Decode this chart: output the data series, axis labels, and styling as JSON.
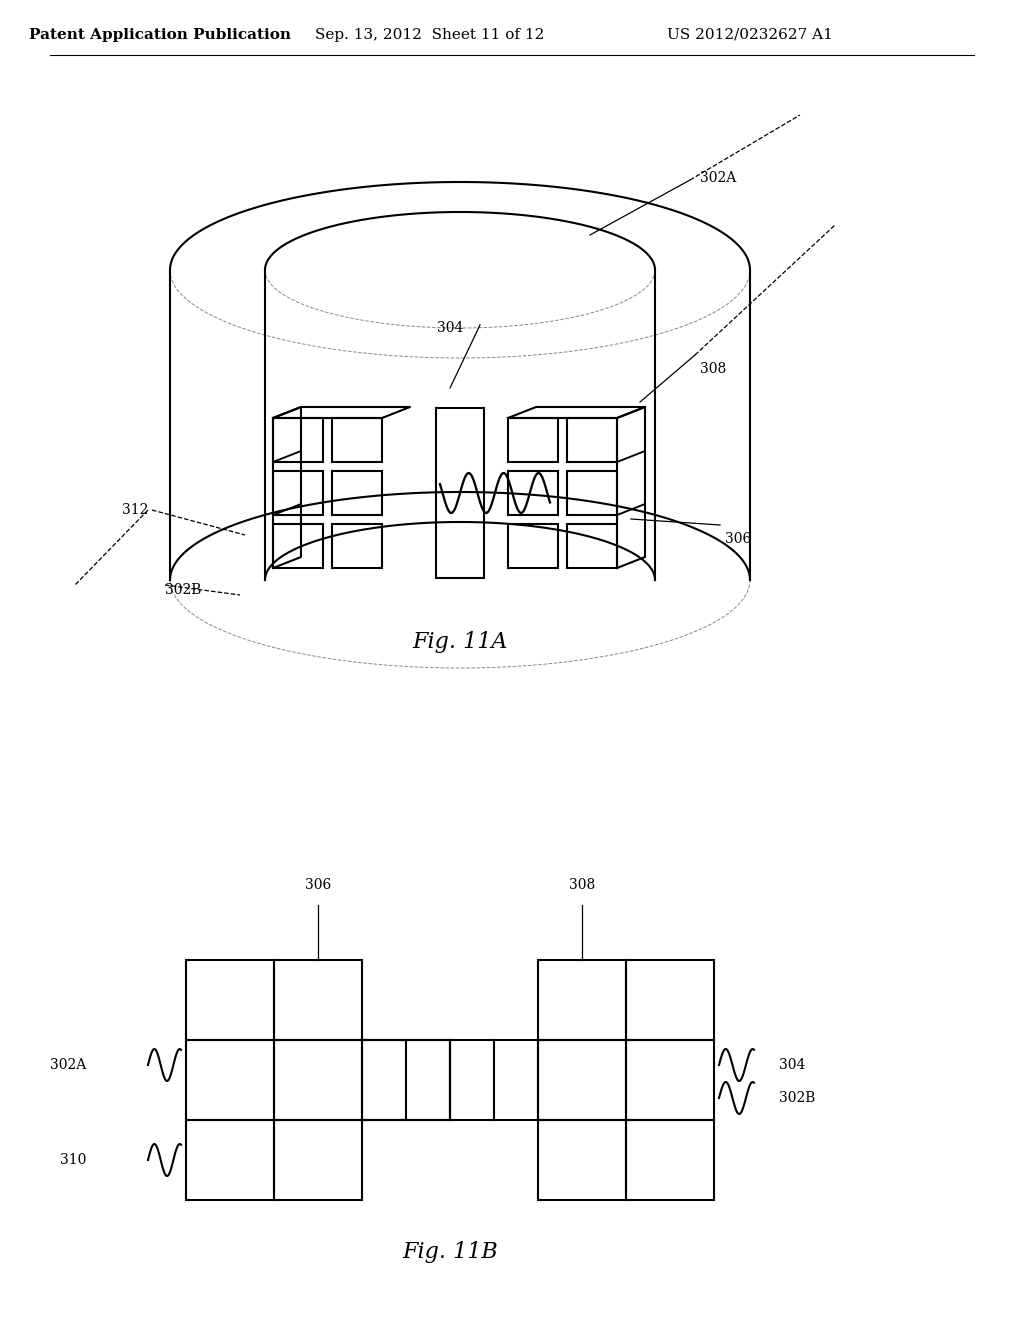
{
  "background_color": "#ffffff",
  "header_text": "Patent Application Publication",
  "header_date": "Sep. 13, 2012  Sheet 11 of 12",
  "header_patent": "US 2012/0232627 A1",
  "fig11a_label": "Fig. 11A",
  "fig11b_label": "Fig. 11B",
  "line_color": "#000000",
  "line_width": 1.5,
  "font_size_header": 11,
  "font_size_label": 16,
  "font_size_ref": 10
}
